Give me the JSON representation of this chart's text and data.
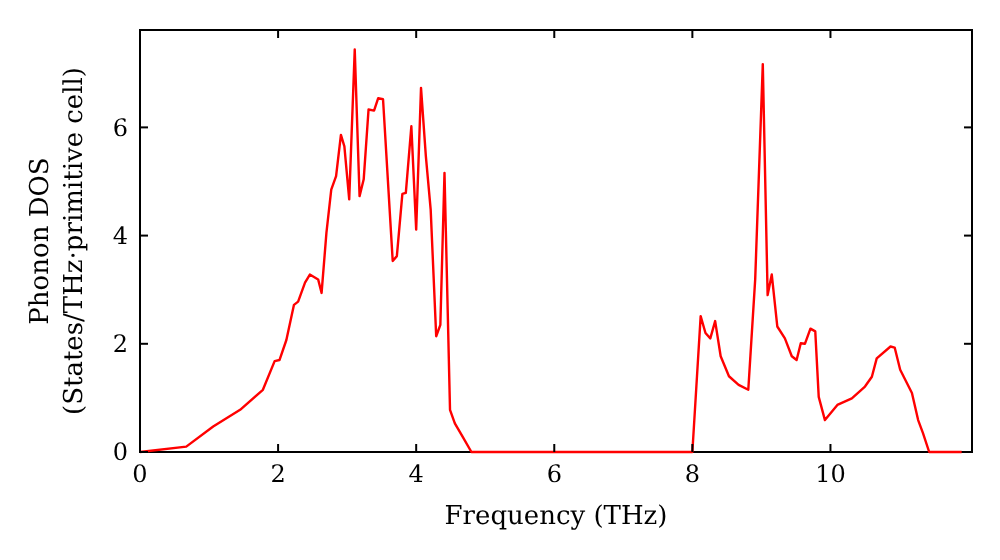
{
  "chart_data": {
    "type": "line",
    "xlabel": "Frequency (THz)",
    "ylabel": "Phonon DOS\n(States/THz·primitive cell)",
    "xlim": [
      0,
      12.05
    ],
    "ylim": [
      0,
      7.8
    ],
    "xticks": [
      0,
      2,
      4,
      6,
      8,
      10
    ],
    "yticks": [
      0,
      2,
      4,
      6
    ],
    "grid": false,
    "series": [
      {
        "color": "#ff0000",
        "x": [
          0,
          0.67,
          1.06,
          1.45,
          1.78,
          1.95,
          2.02,
          2.12,
          2.23,
          2.29,
          2.39,
          2.46,
          2.58,
          2.63,
          2.7,
          2.77,
          2.84,
          2.91,
          2.96,
          3.03,
          3.11,
          3.18,
          3.24,
          3.31,
          3.39,
          3.45,
          3.52,
          3.66,
          3.72,
          3.8,
          3.85,
          3.93,
          4.0,
          4.07,
          4.14,
          4.21,
          4.29,
          4.35,
          4.41,
          4.49,
          4.56,
          4.67,
          4.8,
          8.0,
          8.12,
          8.19,
          8.26,
          8.33,
          8.41,
          8.53,
          8.67,
          8.81,
          8.91,
          9.02,
          9.09,
          9.15,
          9.23,
          9.34,
          9.44,
          9.51,
          9.57,
          9.63,
          9.71,
          9.78,
          9.83,
          9.92,
          10.1,
          10.31,
          10.5,
          10.6,
          10.67,
          10.87,
          10.93,
          11.01,
          11.18,
          11.27,
          11.34,
          11.43,
          11.9
        ],
        "values": [
          0,
          0.1,
          0.47,
          0.78,
          1.15,
          1.68,
          1.7,
          2.07,
          2.72,
          2.78,
          3.13,
          3.28,
          3.19,
          2.94,
          4.05,
          4.85,
          5.1,
          5.86,
          5.65,
          4.67,
          7.44,
          4.73,
          5.04,
          6.33,
          6.31,
          6.54,
          6.52,
          3.53,
          3.62,
          4.77,
          4.79,
          6.02,
          4.11,
          6.73,
          5.47,
          4.48,
          2.14,
          2.35,
          5.16,
          0.78,
          0.53,
          0.29,
          0,
          0,
          2.51,
          2.2,
          2.1,
          2.42,
          1.77,
          1.4,
          1.24,
          1.15,
          3.19,
          7.17,
          2.9,
          3.28,
          2.32,
          2.1,
          1.77,
          1.7,
          2.01,
          2.0,
          2.28,
          2.23,
          1.02,
          0.59,
          0.87,
          0.99,
          1.21,
          1.39,
          1.73,
          1.95,
          1.93,
          1.52,
          1.09,
          0.59,
          0.35,
          0,
          0
        ]
      }
    ]
  }
}
